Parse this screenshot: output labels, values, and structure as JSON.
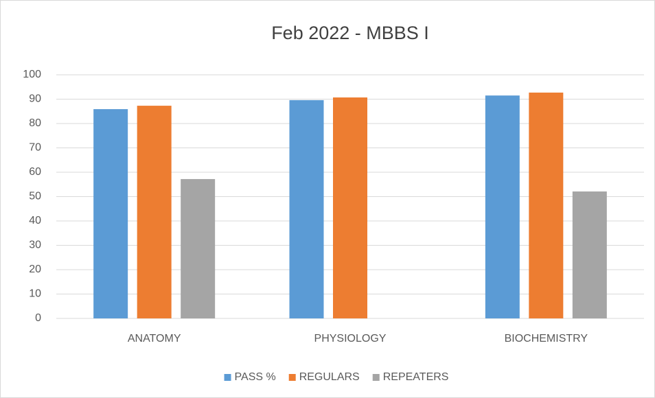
{
  "chart_data": {
    "type": "bar",
    "title": "Feb 2022 - MBBS I",
    "categories": [
      "ANATOMY",
      "PHYSIOLOGY",
      "BIOCHEMISTRY"
    ],
    "series": [
      {
        "name": "PASS %",
        "color": "#5b9bd5",
        "values": [
          85.9,
          89.6,
          91.5
        ]
      },
      {
        "name": "REGULARS",
        "color": "#ed7d31",
        "values": [
          87.3,
          90.7,
          92.7
        ]
      },
      {
        "name": "REPEATERS",
        "color": "#a5a5a5",
        "values": [
          57.2,
          null,
          52.1
        ]
      }
    ],
    "ylim": [
      0,
      100
    ],
    "yticks": [
      0,
      10,
      20,
      30,
      40,
      50,
      60,
      70,
      80,
      90,
      100
    ],
    "grid": true,
    "legend": "bottom"
  }
}
